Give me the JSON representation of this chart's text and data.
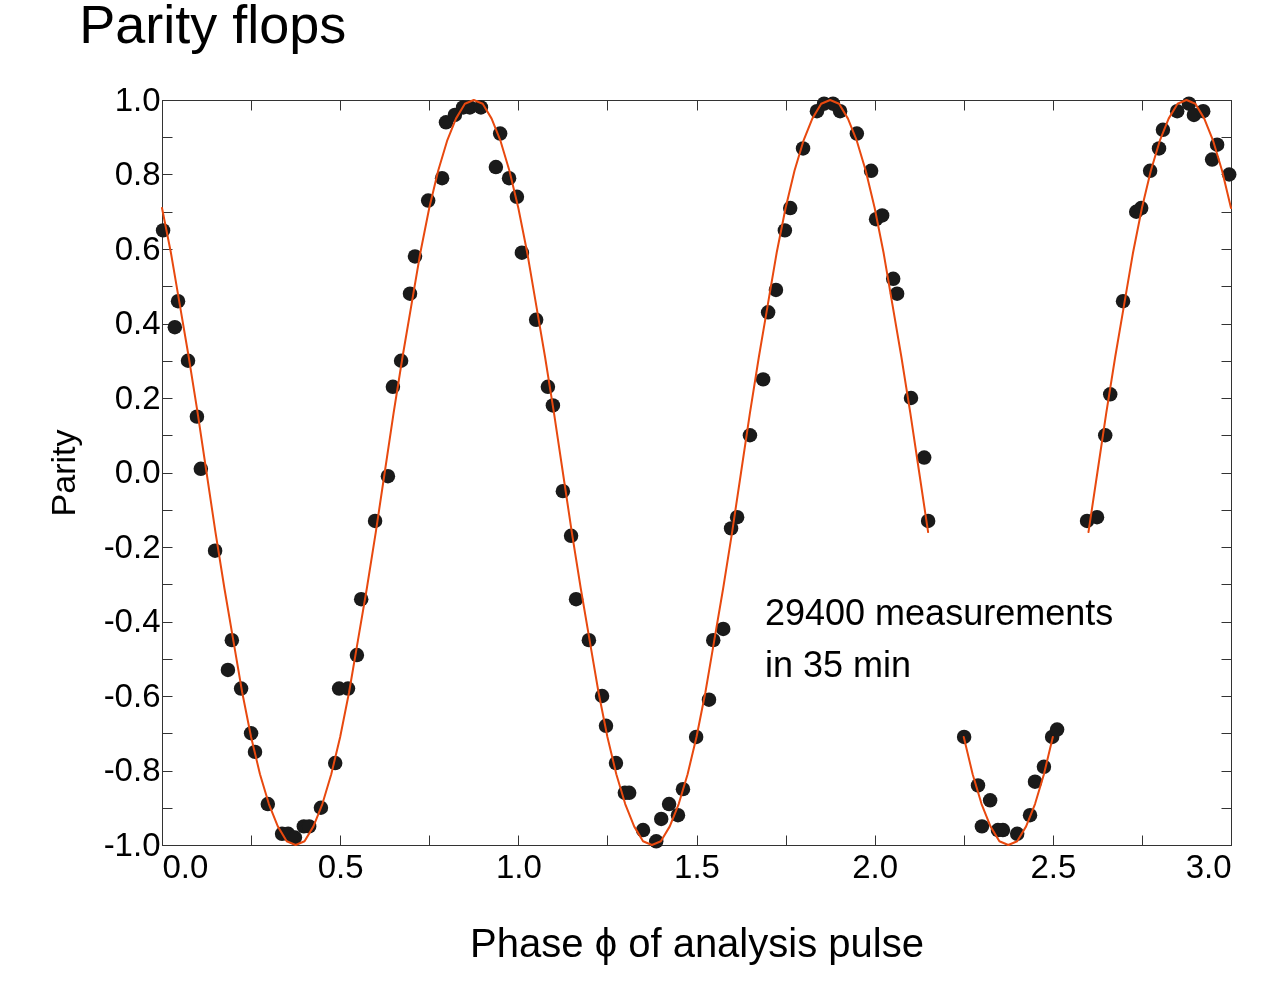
{
  "chart_data": {
    "type": "scatter",
    "title": "Parity flops",
    "xlabel": "Phase ϕ of analysis pulse",
    "ylabel": "Parity",
    "annotations": [
      "29400 measurements\nin 35 min"
    ],
    "xlim": [
      0,
      3
    ],
    "ylim": [
      -1,
      1
    ],
    "xticks": [
      {
        "value": 0,
        "label": "0.0"
      },
      {
        "value": 0.25,
        "label": null
      },
      0.5,
      {
        "value": 0.75,
        "label": null
      },
      {
        "value": 1,
        "label": "1.0"
      },
      {
        "value": 1.25,
        "label": null
      },
      1.5,
      {
        "value": 1.75,
        "label": null
      },
      {
        "value": 2,
        "label": "2.0"
      },
      {
        "value": 2.25,
        "label": null
      },
      2.5,
      {
        "value": 2.75,
        "label": null
      },
      {
        "value": 3,
        "label": "3.0"
      }
    ],
    "yticks": [
      {
        "value": -1,
        "label": "-1.0"
      },
      {
        "value": -0.9,
        "label": null
      },
      -0.8,
      {
        "value": -0.7,
        "label": null
      },
      -0.6,
      {
        "value": -0.5,
        "label": null
      },
      -0.4,
      {
        "value": -0.3,
        "label": null
      },
      -0.2,
      {
        "value": -0.1,
        "label": null
      },
      {
        "value": 0,
        "label": "0.0"
      },
      {
        "value": 0.1,
        "label": null
      },
      0.2,
      {
        "value": 0.3,
        "label": null
      },
      0.4,
      {
        "value": 0.5,
        "label": null
      },
      0.6,
      {
        "value": 0.7,
        "label": null
      },
      0.8,
      {
        "value": 0.9,
        "label": null
      },
      {
        "value": 1,
        "label": "1.0"
      }
    ],
    "grid": false,
    "marker": "circle",
    "series": [
      {
        "color": "#1a1a1a",
        "x": [
          0.003,
          0.036,
          0.045,
          0.073,
          0.098,
          0.109,
          0.149,
          0.185,
          0.196,
          0.222,
          0.25,
          0.261,
          0.297,
          0.337,
          0.354,
          0.373,
          0.398,
          0.413,
          0.446,
          0.486,
          0.497,
          0.522,
          0.547,
          0.559,
          0.598,
          0.634,
          0.648,
          0.671,
          0.696,
          0.71,
          0.747,
          0.786,
          0.797,
          0.822,
          0.845,
          0.864,
          0.895,
          0.937,
          0.949,
          0.974,
          0.996,
          1.01,
          1.05,
          1.083,
          1.097,
          1.125,
          1.148,
          1.162,
          1.198,
          1.235,
          1.246,
          1.274,
          1.299,
          1.311,
          1.35,
          1.387,
          1.401,
          1.423,
          1.448,
          1.462,
          1.499,
          1.535,
          1.547,
          1.575,
          1.597,
          1.614,
          1.65,
          1.687,
          1.701,
          1.723,
          1.748,
          1.763,
          1.799,
          1.838,
          1.858,
          1.883,
          1.903,
          1.95,
          1.99,
          2.004,
          2.021,
          2.052,
          2.063,
          2.102,
          2.139,
          2.15,
          2.251,
          2.29,
          2.301,
          2.324,
          2.346,
          2.36,
          2.4,
          2.436,
          2.45,
          2.475,
          2.498,
          2.512,
          2.596,
          2.624,
          2.647,
          2.661,
          2.697,
          2.734,
          2.748,
          2.773,
          2.798,
          2.809,
          2.849,
          2.882,
          2.896,
          2.922,
          2.947,
          2.961,
          2.995
        ],
        "values": [
          0.65,
          0.39,
          0.46,
          0.3,
          0.15,
          0.01,
          -0.21,
          -0.53,
          -0.45,
          -0.58,
          -0.7,
          -0.75,
          -0.89,
          -0.97,
          -0.97,
          -0.98,
          -0.95,
          -0.95,
          -0.9,
          -0.78,
          -0.58,
          -0.58,
          -0.49,
          -0.34,
          -0.13,
          -0.01,
          0.23,
          0.3,
          0.48,
          0.58,
          0.73,
          0.79,
          0.94,
          0.96,
          0.98,
          0.98,
          0.98,
          0.82,
          0.91,
          0.79,
          0.74,
          0.59,
          0.41,
          0.23,
          0.18,
          -0.05,
          -0.17,
          -0.34,
          -0.45,
          -0.6,
          -0.68,
          -0.78,
          -0.86,
          -0.86,
          -0.96,
          -0.99,
          -0.93,
          -0.89,
          -0.92,
          -0.85,
          -0.71,
          -0.61,
          -0.45,
          -0.42,
          -0.15,
          -0.12,
          0.1,
          0.25,
          0.43,
          0.49,
          0.65,
          0.71,
          0.87,
          0.97,
          0.99,
          0.99,
          0.97,
          0.91,
          0.81,
          0.68,
          0.69,
          0.52,
          0.48,
          0.2,
          0.04,
          -0.13,
          -0.71,
          -0.84,
          -0.95,
          -0.88,
          -0.96,
          -0.96,
          -0.97,
          -0.92,
          -0.83,
          -0.79,
          -0.71,
          -0.69,
          -0.13,
          -0.12,
          0.1,
          0.21,
          0.46,
          0.7,
          0.71,
          0.81,
          0.87,
          0.92,
          0.97,
          0.99,
          0.96,
          0.97,
          0.84,
          0.88,
          0.8
        ]
      },
      {
        "type": "line",
        "color": "#e8490f",
        "marker": "none",
        "line_style": "solid",
        "x": [
          0,
          0.025,
          0.05,
          0.075,
          0.1,
          0.125,
          0.15,
          0.175,
          0.2,
          0.225,
          0.25,
          0.275,
          0.3,
          0.325,
          0.35,
          0.375,
          0.4,
          0.425,
          0.45,
          0.475,
          0.5,
          0.525,
          0.55,
          0.575,
          0.6,
          0.625,
          0.65,
          0.675,
          0.7,
          0.725,
          0.75,
          0.775,
          0.8,
          0.825,
          0.85,
          0.875,
          0.9,
          0.925,
          0.95,
          0.975,
          1,
          1.025,
          1.05,
          1.075,
          1.1,
          1.125,
          1.15,
          1.175,
          1.2,
          1.225,
          1.25,
          1.275,
          1.3,
          1.325,
          1.35,
          1.375,
          1.4,
          1.425,
          1.45,
          1.475,
          1.5,
          1.525,
          1.55,
          1.575,
          1.6,
          1.625,
          1.65,
          1.675,
          1.7,
          1.725,
          1.75,
          1.775,
          1.8,
          1.825,
          1.85,
          1.875,
          1.9,
          1.925,
          1.95,
          1.975,
          2,
          2.025,
          2.05,
          2.075,
          2.1,
          2.125,
          2.15,
          2.175,
          2.2,
          2.225,
          2.25,
          2.275,
          2.3,
          2.325,
          2.35,
          2.375,
          2.4,
          2.425,
          2.45,
          2.475,
          2.5,
          2.525,
          2.55,
          2.575,
          2.6,
          2.625,
          2.65,
          2.675,
          2.7,
          2.725,
          2.75,
          2.775,
          2.8,
          2.825,
          2.85,
          2.875,
          2.9,
          2.925,
          2.95,
          2.975,
          3
        ],
        "values": [
          0.71,
          0.59,
          0.45,
          0.31,
          0.16,
          0,
          -0.16,
          -0.31,
          -0.45,
          -0.59,
          -0.71,
          -0.81,
          -0.89,
          -0.95,
          -0.99,
          -1,
          -0.99,
          -0.95,
          -0.89,
          -0.81,
          -0.71,
          -0.59,
          -0.45,
          -0.31,
          -0.16,
          0,
          0.16,
          0.31,
          0.45,
          0.59,
          0.71,
          0.81,
          0.89,
          0.95,
          0.99,
          1,
          0.99,
          0.95,
          0.89,
          0.81,
          0.71,
          0.59,
          0.45,
          0.31,
          0.16,
          0,
          -0.16,
          -0.31,
          -0.45,
          -0.59,
          -0.71,
          -0.81,
          -0.89,
          -0.95,
          -0.99,
          -1,
          -0.99,
          -0.95,
          -0.89,
          -0.81,
          -0.71,
          -0.59,
          -0.45,
          -0.31,
          -0.16,
          0,
          0.16,
          0.31,
          0.45,
          0.59,
          0.71,
          0.81,
          0.89,
          0.95,
          0.99,
          1,
          0.99,
          0.95,
          0.89,
          0.81,
          0.71,
          0.59,
          0.45,
          0.31,
          0.16,
          0,
          -0.16,
          null,
          null,
          null,
          -0.71,
          -0.81,
          -0.89,
          -0.95,
          -0.99,
          -1,
          -0.99,
          -0.95,
          -0.89,
          -0.81,
          -0.71,
          null,
          null,
          null,
          -0.16,
          0,
          0.16,
          0.31,
          0.45,
          0.59,
          0.71,
          0.81,
          0.89,
          0.95,
          0.99,
          1,
          0.99,
          0.95,
          0.89,
          0.81,
          0.71
        ]
      }
    ]
  }
}
